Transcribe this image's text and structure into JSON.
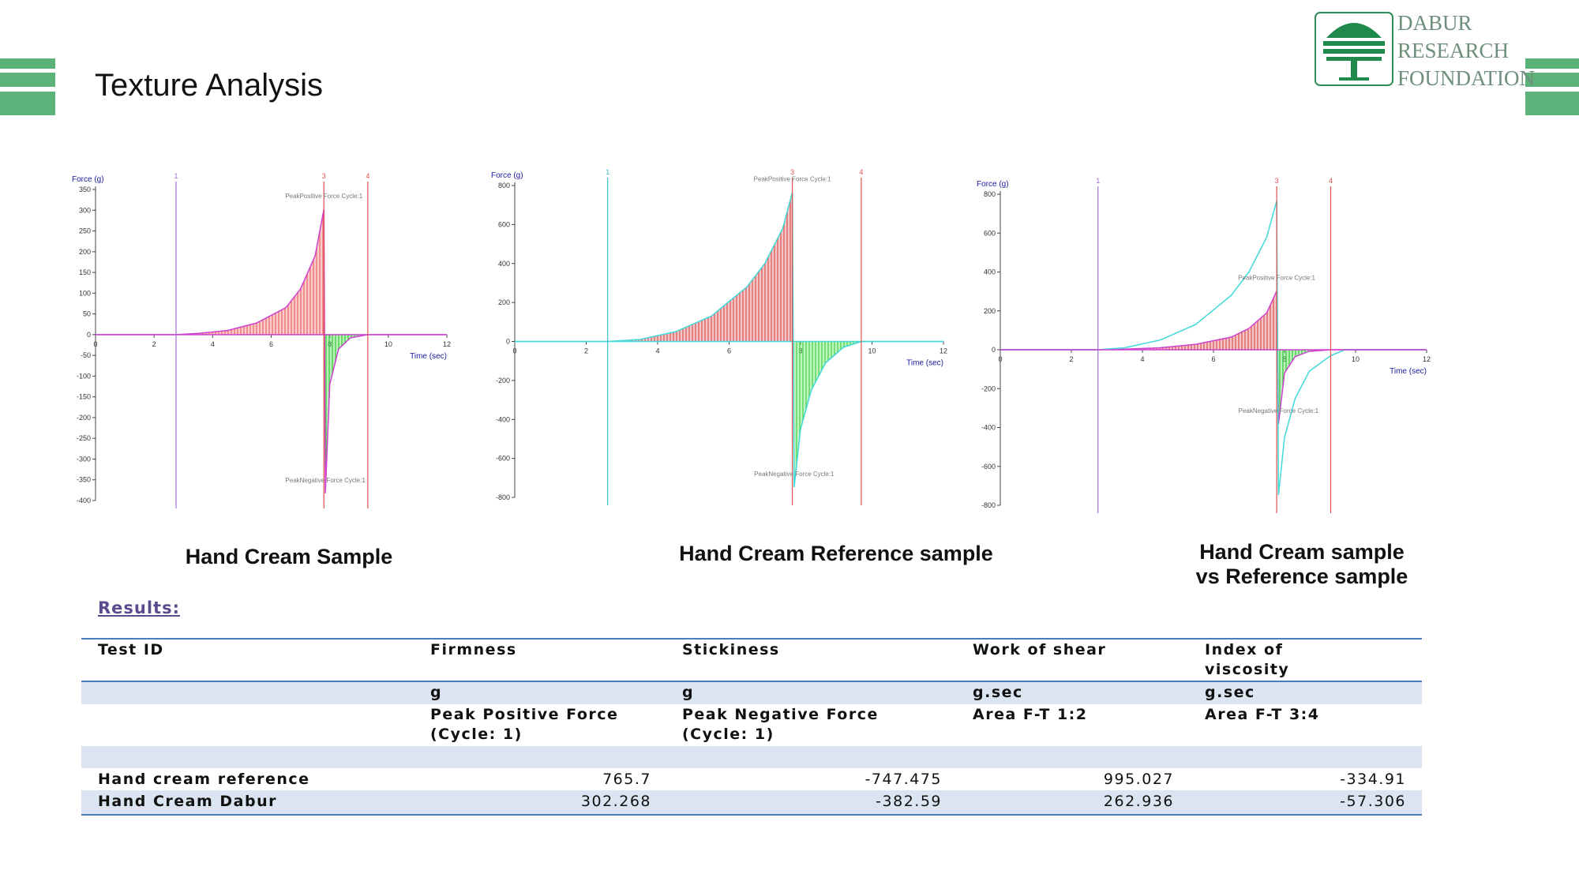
{
  "header": {
    "title": "Texture Analysis",
    "logo": [
      "DABUR",
      "RESEARCH",
      "FOUNDATION"
    ]
  },
  "chart_data": [
    {
      "type": "area",
      "title": "Hand Cream Sample",
      "ylabel": "Force (g)",
      "xlabel": "Time (sec)",
      "xlim": [
        0,
        12
      ],
      "ylim": [
        -400,
        350
      ],
      "xticks": [
        0,
        2,
        4,
        6,
        8,
        10,
        12
      ],
      "yticks": [
        350,
        300,
        250,
        200,
        150,
        100,
        50,
        0,
        -50,
        -100,
        -150,
        -200,
        -250,
        -300,
        -350,
        -400
      ],
      "markers": [
        {
          "label": "1",
          "x": 2.75,
          "color": "#a070d0"
        },
        {
          "label": "3",
          "x": 7.8,
          "color": "#e05050"
        },
        {
          "label": "4",
          "x": 9.3,
          "color": "#e05050"
        }
      ],
      "annotations": [
        "PeakPositive Force Cycle:1",
        "PeakNegative Force Cycle:1"
      ],
      "series": [
        {
          "color": "#d040d0",
          "fill_pos": "#f07070",
          "fill_neg": "#40d040",
          "x": [
            0,
            2.75,
            3.5,
            4.5,
            5.5,
            6.5,
            7,
            7.5,
            7.8,
            7.85,
            8,
            8.3,
            8.7,
            9.3,
            12
          ],
          "values": [
            0,
            0,
            3,
            10,
            28,
            65,
            110,
            190,
            302.268,
            -382.59,
            -120,
            -35,
            -8,
            0,
            0
          ]
        }
      ]
    },
    {
      "type": "area",
      "title": "Hand Cream Reference sample",
      "ylabel": "Force (g)",
      "xlabel": "Time (sec)",
      "xlim": [
        0,
        12
      ],
      "ylim": [
        -800,
        800
      ],
      "xticks": [
        0,
        2,
        4,
        6,
        8,
        10,
        12
      ],
      "yticks": [
        800,
        600,
        400,
        200,
        0,
        -200,
        -400,
        -600,
        -800
      ],
      "markers": [
        {
          "label": "1",
          "x": 2.6,
          "color": "#40c0d0"
        },
        {
          "label": "3",
          "x": 7.77,
          "color": "#e05050"
        },
        {
          "label": "4",
          "x": 9.7,
          "color": "#e05050"
        }
      ],
      "annotations": [
        "PeakPositive Force Cycle:1",
        "PeakNegative Force Cycle:1"
      ],
      "series": [
        {
          "color": "#40d8d8",
          "fill_pos": "#e06060",
          "fill_neg": "#50d850",
          "x": [
            0,
            2.6,
            3.5,
            4.5,
            5.5,
            6.5,
            7,
            7.5,
            7.77,
            7.82,
            8,
            8.3,
            8.7,
            9.2,
            9.7,
            12
          ],
          "values": [
            0,
            0,
            10,
            50,
            130,
            280,
            400,
            580,
            765.7,
            -747.475,
            -450,
            -250,
            -110,
            -30,
            0,
            0
          ]
        }
      ]
    },
    {
      "type": "area",
      "title": "Hand Cream sample vs Reference sample",
      "ylabel": "Force (g)",
      "xlabel": "Time (sec)",
      "xlim": [
        0,
        12
      ],
      "ylim": [
        -800,
        800
      ],
      "xticks": [
        0,
        2,
        4,
        6,
        8,
        10,
        12
      ],
      "yticks": [
        800,
        600,
        400,
        200,
        0,
        -200,
        -400,
        -600,
        -800
      ],
      "markers": [
        {
          "label": "1",
          "x": 2.75,
          "color": "#a070d0"
        },
        {
          "label": "3",
          "x": 7.78,
          "color": "#e05050"
        },
        {
          "label": "4",
          "x": 9.3,
          "color": "#e05050"
        }
      ],
      "annotations": [
        "PeakPositive Force Cycle:1",
        "PeakNegative Force Cycle:1"
      ],
      "series": [
        {
          "color": "#d040d0",
          "fill_pos": "#e06060",
          "fill_neg": "#40d040",
          "x": [
            0,
            2.75,
            3.5,
            4.5,
            5.5,
            6.5,
            7,
            7.5,
            7.78,
            7.83,
            8,
            8.3,
            8.7,
            9.3,
            12
          ],
          "values": [
            0,
            0,
            3,
            10,
            28,
            65,
            110,
            190,
            302.268,
            -382.59,
            -120,
            -35,
            -8,
            0,
            0
          ]
        },
        {
          "color": "#40d8d8",
          "x": [
            0,
            2.75,
            3.5,
            4.5,
            5.5,
            6.5,
            7,
            7.5,
            7.78,
            7.83,
            8,
            8.3,
            8.7,
            9.3,
            9.7,
            12
          ],
          "values": [
            0,
            0,
            10,
            50,
            130,
            280,
            400,
            580,
            765.7,
            -747.475,
            -450,
            -250,
            -110,
            -30,
            0,
            0
          ]
        }
      ]
    }
  ],
  "results": {
    "title": "Results:",
    "table": {
      "header": [
        "Test ID",
        "Firmness",
        "Stickiness",
        "Work of shear",
        "Index of viscosity"
      ],
      "units": [
        "g",
        "g",
        "g.sec",
        "g.sec"
      ],
      "descriptions": [
        "Peak Positive Force (Cycle: 1)",
        "Peak Negative Force (Cycle: 1)",
        "Area F-T 1:2",
        "Area F-T 3:4"
      ],
      "rows": [
        [
          "Hand cream reference",
          765.7,
          -747.475,
          995.027,
          -334.91
        ],
        [
          "Hand Cream Dabur",
          302.268,
          -382.59,
          262.936,
          -57.306
        ]
      ]
    }
  }
}
